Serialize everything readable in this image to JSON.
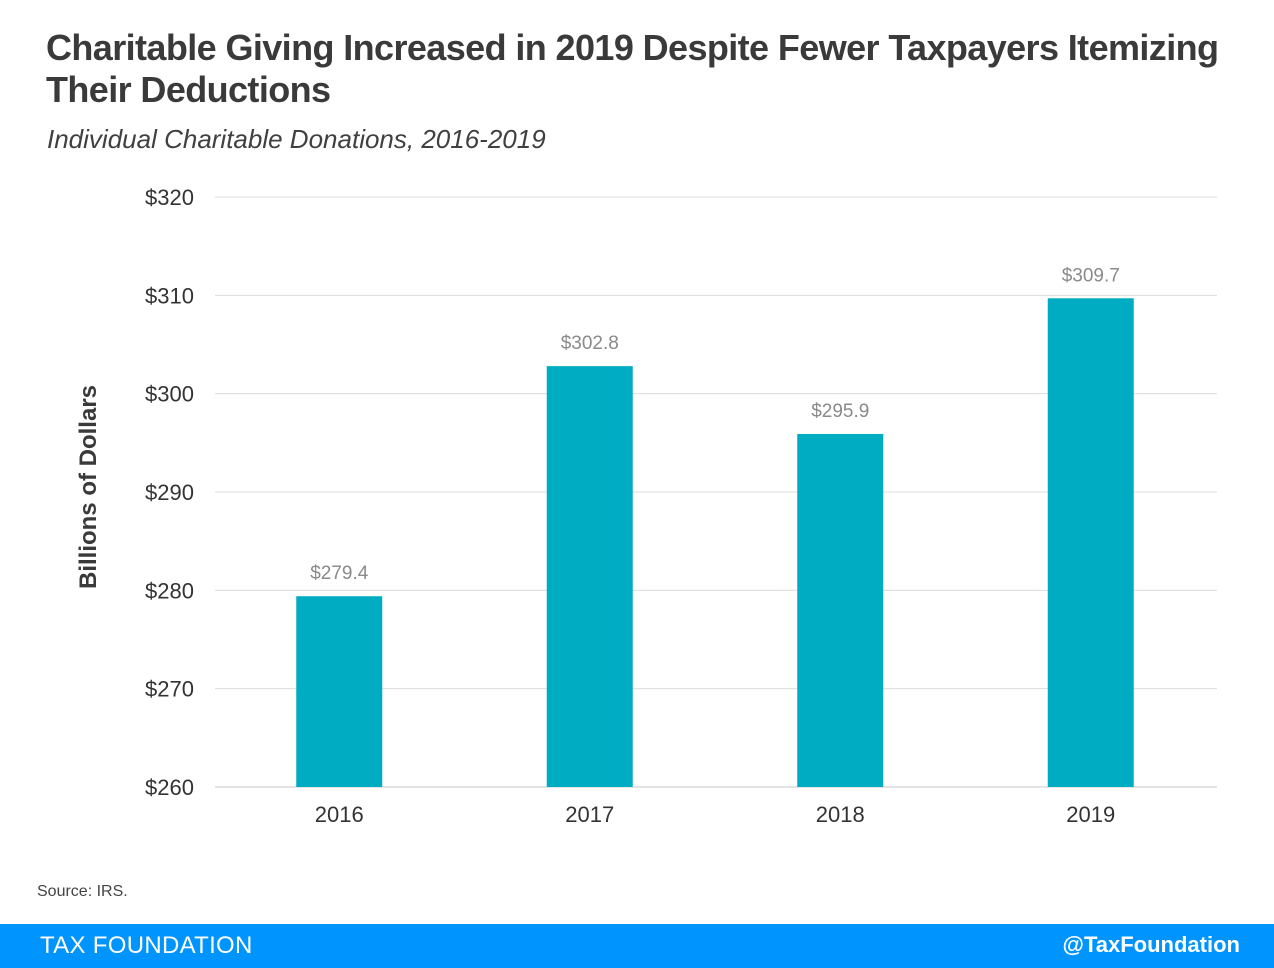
{
  "title": "Charitable Giving Increased in 2019 Despite Fewer Taxpayers Itemizing Their Deductions",
  "subtitle": "Individual Charitable Donations, 2016-2019",
  "source": "Source: IRS.",
  "footer": {
    "brand": "TAX FOUNDATION",
    "handle": "@TaxFoundation"
  },
  "colors": {
    "bar": "#00acc1",
    "footer": "#0094ff"
  },
  "chart_data": {
    "type": "bar",
    "categories": [
      "2016",
      "2017",
      "2018",
      "2019"
    ],
    "values": [
      279.4,
      302.8,
      295.9,
      309.7
    ],
    "value_labels": [
      "$279.4",
      "$302.8",
      "$295.9",
      "$309.7"
    ],
    "ylabel": "Billions of Dollars",
    "ylim": [
      260,
      320
    ],
    "yticks": [
      260,
      270,
      280,
      290,
      300,
      310,
      320
    ],
    "ytick_labels": [
      "$260",
      "$270",
      "$280",
      "$290",
      "$300",
      "$310",
      "$320"
    ],
    "grid": true
  }
}
